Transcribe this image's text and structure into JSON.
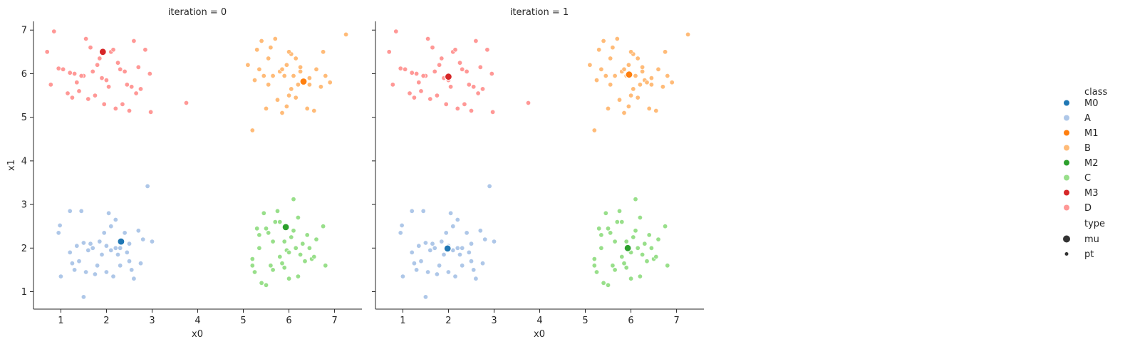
{
  "chart_data": {
    "type": "scatter",
    "x_label": "x0",
    "y_label": "x1",
    "xlim": [
      0.4,
      7.6
    ],
    "ylim": [
      0.6,
      7.2
    ],
    "x_ticks": [
      1,
      2,
      3,
      4,
      5,
      6,
      7
    ],
    "y_ticks": [
      1,
      2,
      3,
      4,
      5,
      6,
      7
    ],
    "grid": false,
    "legend_placement": "right",
    "legend": {
      "class_title": "class",
      "class_items": [
        {
          "label": "M0",
          "color": "#1f77b4"
        },
        {
          "label": "A",
          "color": "#aec7e8"
        },
        {
          "label": "M1",
          "color": "#ff7f0e"
        },
        {
          "label": "B",
          "color": "#ffbb78"
        },
        {
          "label": "M2",
          "color": "#2ca02c"
        },
        {
          "label": "C",
          "color": "#98df8a"
        },
        {
          "label": "M3",
          "color": "#d62728"
        },
        {
          "label": "D",
          "color": "#ff9896"
        }
      ],
      "type_title": "type",
      "type_items": [
        {
          "label": "mu",
          "marker": "large"
        },
        {
          "label": "pt",
          "marker": "small"
        }
      ]
    },
    "points": {
      "A": [
        [
          1.0,
          1.35
        ],
        [
          0.95,
          2.35
        ],
        [
          0.98,
          2.52
        ],
        [
          1.2,
          2.85
        ],
        [
          1.45,
          2.85
        ],
        [
          1.5,
          0.88
        ],
        [
          1.65,
          2.1
        ],
        [
          1.8,
          1.6
        ],
        [
          1.9,
          1.85
        ],
        [
          1.95,
          2.35
        ],
        [
          2.05,
          2.8
        ],
        [
          2.1,
          2.5
        ],
        [
          2.15,
          1.35
        ],
        [
          2.2,
          2.0
        ],
        [
          2.25,
          1.85
        ],
        [
          2.3,
          1.6
        ],
        [
          2.4,
          2.35
        ],
        [
          2.45,
          1.9
        ],
        [
          2.5,
          2.1
        ],
        [
          2.6,
          1.3
        ],
        [
          2.7,
          2.4
        ],
        [
          2.8,
          2.2
        ],
        [
          2.9,
          3.42
        ],
        [
          3.0,
          2.15
        ],
        [
          1.3,
          1.5
        ],
        [
          1.4,
          1.7
        ],
        [
          1.55,
          1.45
        ],
        [
          1.6,
          1.95
        ],
        [
          1.7,
          2.0
        ],
        [
          1.75,
          1.4
        ],
        [
          2.0,
          1.45
        ],
        [
          2.1,
          1.95
        ],
        [
          2.3,
          2.0
        ],
        [
          2.5,
          1.7
        ],
        [
          2.75,
          1.65
        ],
        [
          1.35,
          2.05
        ],
        [
          1.85,
          2.15
        ],
        [
          2.2,
          2.65
        ],
        [
          2.55,
          1.5
        ],
        [
          1.2,
          1.9
        ],
        [
          1.5,
          2.12
        ],
        [
          2.0,
          2.05
        ],
        [
          1.25,
          1.65
        ]
      ],
      "B": [
        [
          5.2,
          4.7
        ],
        [
          5.3,
          6.55
        ],
        [
          5.35,
          6.1
        ],
        [
          5.4,
          6.75
        ],
        [
          5.45,
          5.95
        ],
        [
          5.5,
          5.2
        ],
        [
          5.55,
          5.75
        ],
        [
          5.6,
          6.6
        ],
        [
          5.7,
          6.8
        ],
        [
          5.75,
          5.4
        ],
        [
          5.8,
          6.05
        ],
        [
          5.85,
          5.1
        ],
        [
          5.9,
          5.95
        ],
        [
          5.95,
          6.2
        ],
        [
          6.0,
          5.5
        ],
        [
          6.05,
          6.45
        ],
        [
          6.1,
          5.95
        ],
        [
          6.15,
          6.35
        ],
        [
          6.2,
          5.75
        ],
        [
          6.25,
          6.05
        ],
        [
          6.3,
          5.85
        ],
        [
          6.4,
          5.2
        ],
        [
          6.45,
          5.75
        ],
        [
          6.55,
          5.15
        ],
        [
          6.6,
          6.1
        ],
        [
          6.7,
          5.7
        ],
        [
          6.75,
          6.5
        ],
        [
          6.8,
          5.95
        ],
        [
          6.9,
          5.8
        ],
        [
          7.25,
          6.9
        ],
        [
          5.1,
          6.2
        ],
        [
          5.25,
          5.85
        ],
        [
          5.65,
          5.95
        ],
        [
          5.85,
          6.1
        ],
        [
          6.0,
          6.5
        ],
        [
          6.15,
          5.45
        ],
        [
          6.35,
          5.8
        ],
        [
          6.45,
          5.9
        ],
        [
          5.95,
          5.25
        ],
        [
          6.05,
          5.65
        ],
        [
          5.55,
          6.35
        ],
        [
          6.25,
          6.15
        ]
      ],
      "C": [
        [
          5.2,
          1.75
        ],
        [
          5.25,
          1.45
        ],
        [
          5.3,
          2.45
        ],
        [
          5.35,
          2.0
        ],
        [
          5.4,
          1.2
        ],
        [
          5.5,
          1.15
        ],
        [
          5.55,
          2.35
        ],
        [
          5.6,
          1.6
        ],
        [
          5.65,
          1.5
        ],
        [
          5.7,
          2.6
        ],
        [
          5.75,
          2.85
        ],
        [
          5.8,
          1.8
        ],
        [
          5.85,
          1.65
        ],
        [
          5.9,
          2.15
        ],
        [
          5.95,
          1.95
        ],
        [
          6.0,
          1.3
        ],
        [
          6.05,
          2.25
        ],
        [
          6.1,
          3.12
        ],
        [
          6.15,
          2.0
        ],
        [
          6.2,
          2.7
        ],
        [
          6.25,
          1.85
        ],
        [
          6.3,
          2.1
        ],
        [
          6.4,
          2.3
        ],
        [
          6.5,
          1.75
        ],
        [
          6.55,
          1.8
        ],
        [
          6.6,
          2.2
        ],
        [
          6.75,
          2.5
        ],
        [
          6.8,
          1.6
        ],
        [
          5.45,
          2.8
        ],
        [
          5.65,
          2.15
        ],
        [
          5.9,
          1.55
        ],
        [
          6.0,
          1.9
        ],
        [
          6.35,
          1.7
        ],
        [
          5.2,
          1.6
        ],
        [
          5.5,
          2.45
        ],
        [
          5.8,
          2.6
        ],
        [
          6.1,
          2.4
        ],
        [
          6.2,
          1.35
        ],
        [
          5.35,
          2.3
        ],
        [
          6.45,
          2.0
        ]
      ],
      "D": [
        [
          0.7,
          6.5
        ],
        [
          0.78,
          5.75
        ],
        [
          0.85,
          6.97
        ],
        [
          0.95,
          6.12
        ],
        [
          1.05,
          6.1
        ],
        [
          1.15,
          5.55
        ],
        [
          1.25,
          5.45
        ],
        [
          1.3,
          6.0
        ],
        [
          1.4,
          5.6
        ],
        [
          1.5,
          5.95
        ],
        [
          1.55,
          6.8
        ],
        [
          1.65,
          6.6
        ],
        [
          1.75,
          5.5
        ],
        [
          1.8,
          6.2
        ],
        [
          1.9,
          5.9
        ],
        [
          1.95,
          5.3
        ],
        [
          2.05,
          5.7
        ],
        [
          2.1,
          6.5
        ],
        [
          2.2,
          5.2
        ],
        [
          2.3,
          6.1
        ],
        [
          2.35,
          5.3
        ],
        [
          2.45,
          5.75
        ],
        [
          2.5,
          5.15
        ],
        [
          2.6,
          6.75
        ],
        [
          2.65,
          5.55
        ],
        [
          2.7,
          6.15
        ],
        [
          2.85,
          6.55
        ],
        [
          2.95,
          6.0
        ],
        [
          2.97,
          5.12
        ],
        [
          3.75,
          5.33
        ],
        [
          1.2,
          6.02
        ],
        [
          1.35,
          5.8
        ],
        [
          1.6,
          5.42
        ],
        [
          1.7,
          6.05
        ],
        [
          1.85,
          6.35
        ],
        [
          2.0,
          5.85
        ],
        [
          2.15,
          6.55
        ],
        [
          2.4,
          6.05
        ],
        [
          2.55,
          5.7
        ],
        [
          2.75,
          5.65
        ],
        [
          1.45,
          5.95
        ],
        [
          2.25,
          6.25
        ]
      ]
    },
    "panels": [
      {
        "title": "iteration = 0",
        "centroids": [
          {
            "class": "M0",
            "x": 2.32,
            "y": 2.15
          },
          {
            "class": "M1",
            "x": 6.32,
            "y": 5.82
          },
          {
            "class": "M2",
            "x": 5.93,
            "y": 2.48
          },
          {
            "class": "M3",
            "x": 1.92,
            "y": 6.5
          }
        ]
      },
      {
        "title": "iteration = 1",
        "centroids": [
          {
            "class": "M0",
            "x": 1.98,
            "y": 1.99
          },
          {
            "class": "M1",
            "x": 5.96,
            "y": 5.98
          },
          {
            "class": "M2",
            "x": 5.93,
            "y": 2.0
          },
          {
            "class": "M3",
            "x": 2.0,
            "y": 5.93
          }
        ]
      }
    ]
  }
}
